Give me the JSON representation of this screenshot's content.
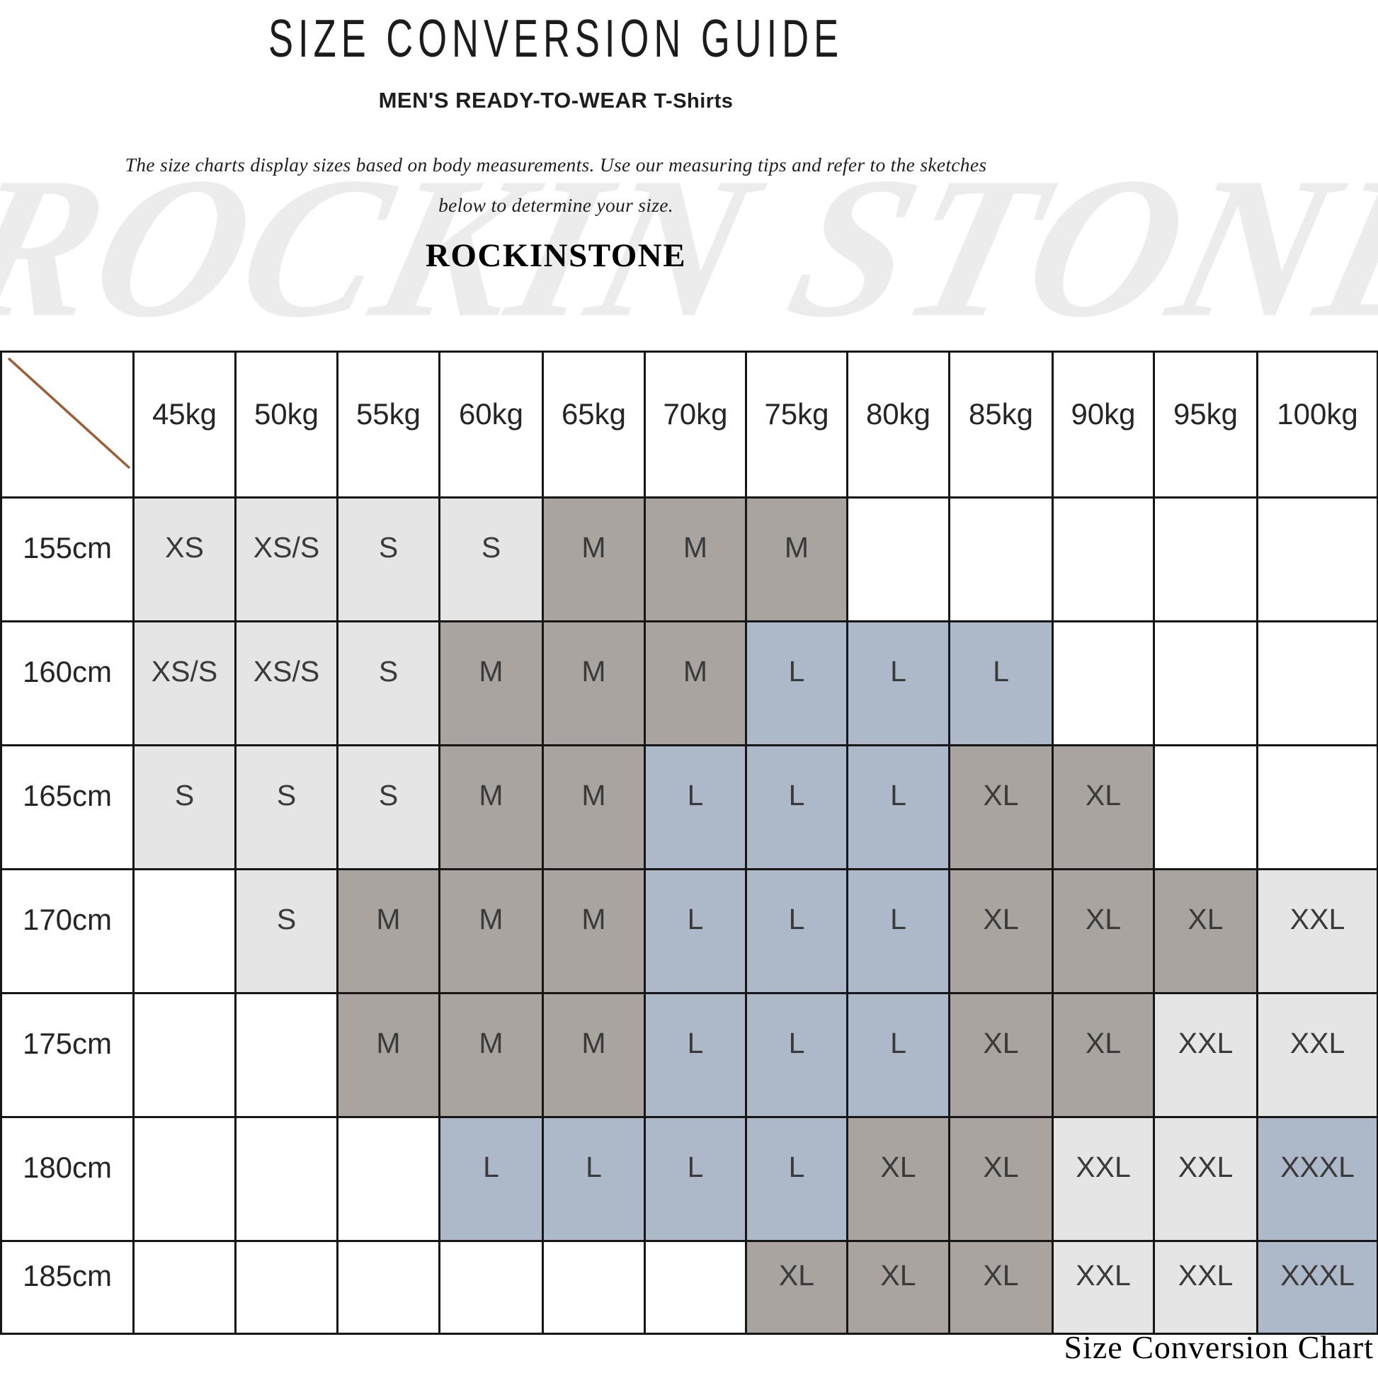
{
  "page": {
    "title": "SIZE CONVERSION GUIDE",
    "subtitle_main": "MEN'S READY-TO-WEAR",
    "subtitle_product": "T-Shirts",
    "description_line1": "The size charts display sizes based on body measurements.  Use our measuring tips and refer to the sketches",
    "description_line2": "below to determine your size.",
    "brand": "ROCKINSTONE",
    "watermark": "ROCKIN STONE",
    "footer_caption": "Size Conversion Chart"
  },
  "colors": {
    "cell_white": "#ffffff",
    "cell_light": "#e5e5e5",
    "cell_gray": "#a9a4a0",
    "cell_blue": "#adb9c9",
    "grid_border": "#161616",
    "diagonal_line": "#9a5f38",
    "watermark": "#ececec"
  },
  "chart_data": {
    "type": "table",
    "title": "SIZE CONVERSION GUIDE",
    "column_axis": "body weight",
    "row_axis": "body height",
    "columns": [
      "45kg",
      "50kg",
      "55kg",
      "60kg",
      "65kg",
      "70kg",
      "75kg",
      "80kg",
      "85kg",
      "90kg",
      "95kg",
      "100kg"
    ],
    "rows": [
      "155cm",
      "160cm",
      "165cm",
      "170cm",
      "175cm",
      "180cm",
      "185cm"
    ],
    "cells": [
      [
        "XS",
        "XS/S",
        "S",
        "S",
        "M",
        "M",
        "M",
        "",
        "",
        "",
        "",
        ""
      ],
      [
        "XS/S",
        "XS/S",
        "S",
        "M",
        "M",
        "M",
        "L",
        "L",
        "L",
        "",
        "",
        ""
      ],
      [
        "S",
        "S",
        "S",
        "M",
        "M",
        "L",
        "L",
        "L",
        "XL",
        "XL",
        "",
        ""
      ],
      [
        "",
        "S",
        "M",
        "M",
        "M",
        "L",
        "L",
        "L",
        "XL",
        "XL",
        "XL",
        "XXL"
      ],
      [
        "",
        "",
        "M",
        "M",
        "M",
        "L",
        "L",
        "L",
        "XL",
        "XL",
        "XXL",
        "XXL"
      ],
      [
        "",
        "",
        "",
        "L",
        "L",
        "L",
        "L",
        "XL",
        "XL",
        "XXL",
        "XXL",
        "XXXL"
      ],
      [
        "",
        "",
        "",
        "",
        "",
        "",
        "XL",
        "XL",
        "XL",
        "XXL",
        "XXL",
        "XXXL"
      ]
    ],
    "cell_colors": [
      [
        "light",
        "light",
        "light",
        "light",
        "gray",
        "gray",
        "gray",
        "white",
        "white",
        "white",
        "white",
        "white"
      ],
      [
        "light",
        "light",
        "light",
        "gray",
        "gray",
        "gray",
        "blue",
        "blue",
        "blue",
        "white",
        "white",
        "white"
      ],
      [
        "light",
        "light",
        "light",
        "gray",
        "gray",
        "blue",
        "blue",
        "blue",
        "gray",
        "gray",
        "white",
        "white"
      ],
      [
        "white",
        "light",
        "gray",
        "gray",
        "gray",
        "blue",
        "blue",
        "blue",
        "gray",
        "gray",
        "gray",
        "light"
      ],
      [
        "white",
        "white",
        "gray",
        "gray",
        "gray",
        "blue",
        "blue",
        "blue",
        "gray",
        "gray",
        "light",
        "light"
      ],
      [
        "white",
        "white",
        "white",
        "blue",
        "blue",
        "blue",
        "blue",
        "gray",
        "gray",
        "light",
        "light",
        "blue"
      ],
      [
        "white",
        "white",
        "white",
        "white",
        "white",
        "white",
        "gray",
        "gray",
        "gray",
        "light",
        "light",
        "blue"
      ]
    ]
  }
}
